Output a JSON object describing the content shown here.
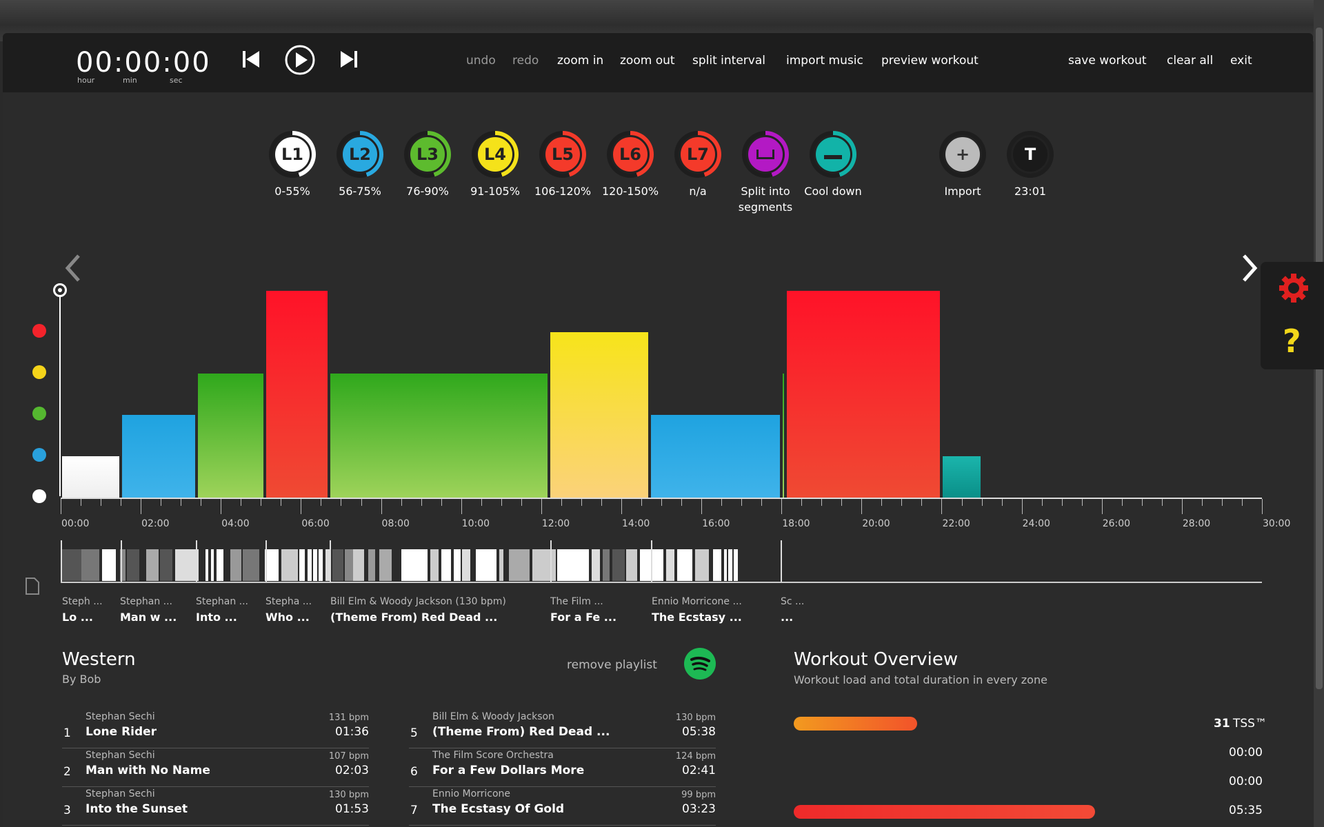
{
  "clock": {
    "time": "00:00:00",
    "unit_hour": "hour",
    "unit_min": "min",
    "unit_sec": "sec"
  },
  "menu": {
    "undo": "undo",
    "redo": "redo",
    "zoom_in": "zoom in",
    "zoom_out": "zoom out",
    "split_interval": "split interval",
    "import_music": "import music",
    "preview_workout": "preview workout",
    "save_workout": "save workout",
    "clear_all": "clear all",
    "exit": "exit"
  },
  "zones": [
    {
      "code": "L1",
      "label": "0-55%",
      "color": "#ffffff"
    },
    {
      "code": "L2",
      "label": "56-75%",
      "color": "#29a9e0"
    },
    {
      "code": "L3",
      "label": "76-90%",
      "color": "#5dbb2e"
    },
    {
      "code": "L4",
      "label": "91-105%",
      "color": "#f5e21a"
    },
    {
      "code": "L5",
      "label": "106-120%",
      "color": "#f43a2a"
    },
    {
      "code": "L6",
      "label": "120-150%",
      "color": "#f43a2a"
    },
    {
      "code": "L7",
      "label": "n/a",
      "color": "#f43a2a"
    },
    {
      "code": "",
      "label": "Split into segments",
      "color": "#b319c4"
    },
    {
      "code": "",
      "label": "Cool down",
      "color": "#12b3a8"
    }
  ],
  "tools": {
    "import_label": "Import",
    "import_symbol": "+",
    "t_symbol": "T",
    "t_value": "23:01"
  },
  "y_colors": [
    "#f4232b",
    "#f5d41a",
    "#55b830",
    "#29a0dc",
    "#ffffff"
  ],
  "chart_data": {
    "type": "bar",
    "x_unit": "minutes",
    "x_ticks": [
      "00:00",
      "02:00",
      "04:00",
      "06:00",
      "08:00",
      "10:00",
      "12:00",
      "14:00",
      "16:00",
      "18:00",
      "20:00",
      "22:00",
      "24:00",
      "26:00",
      "28:00",
      "30:00"
    ],
    "xlim": [
      0,
      30
    ],
    "intervals": [
      {
        "start": 0,
        "end": 1.5,
        "zone": "L1"
      },
      {
        "start": 1.5,
        "end": 3.4,
        "zone": "L2"
      },
      {
        "start": 3.4,
        "end": 5.1,
        "zone": "L3"
      },
      {
        "start": 5.1,
        "end": 6.7,
        "zone": "L5"
      },
      {
        "start": 6.7,
        "end": 12.2,
        "zone": "L3"
      },
      {
        "start": 12.2,
        "end": 14.7,
        "zone": "L4"
      },
      {
        "start": 14.7,
        "end": 18.0,
        "zone": "L2"
      },
      {
        "start": 18.0,
        "end": 18.1,
        "zone": "L3"
      },
      {
        "start": 18.1,
        "end": 22.0,
        "zone": "L5"
      },
      {
        "start": 22.0,
        "end": 23.0,
        "zone": "Cool down"
      }
    ]
  },
  "songs_strip": [
    {
      "artist": "Steph ...",
      "title": "Lo ..."
    },
    {
      "artist": "Stephan ...",
      "title": "Man w ..."
    },
    {
      "artist": "Stephan ...",
      "title": "Into ..."
    },
    {
      "artist": "Stepha ...",
      "title": "Who ..."
    },
    {
      "artist": "Bill Elm & Woody Jackson   (130 bpm)",
      "title": "(Theme From) Red Dead ..."
    },
    {
      "artist": "The Film ...",
      "title": "For a Fe ..."
    },
    {
      "artist": "Ennio Morricone ...",
      "title": "The Ecstasy ..."
    },
    {
      "artist": "Sc ...",
      "title": "..."
    }
  ],
  "playlist": {
    "title": "Western",
    "author": "By Bob",
    "remove_label": "remove playlist",
    "tracks": [
      {
        "num": "1",
        "artist": "Stephan Sechi",
        "title": "Lone Rider",
        "bpm": "131 bpm",
        "duration": "01:36"
      },
      {
        "num": "2",
        "artist": "Stephan Sechi",
        "title": "Man with No Name",
        "bpm": "107 bpm",
        "duration": "02:03"
      },
      {
        "num": "3",
        "artist": "Stephan Sechi",
        "title": "Into the Sunset",
        "bpm": "130 bpm",
        "duration": "01:53"
      },
      {
        "num": "5",
        "artist": "Bill Elm & Woody Jackson",
        "title": "(Theme From) Red Dead ...",
        "bpm": "130 bpm",
        "duration": "05:38"
      },
      {
        "num": "6",
        "artist": "The Film Score Orchestra",
        "title": "For a Few Dollars More",
        "bpm": "124 bpm",
        "duration": "02:41"
      },
      {
        "num": "7",
        "artist": "Ennio Morricone",
        "title": "The Ecstasy Of Gold",
        "bpm": "99 bpm",
        "duration": "03:23"
      }
    ]
  },
  "overview": {
    "title": "Workout Overview",
    "subtitle": "Workout load and total duration in every zone",
    "tss_value": "31",
    "tss_label": "TSS™",
    "rows": [
      {
        "value": "00:00",
        "fraction": 0
      },
      {
        "value": "00:00",
        "fraction": 0
      },
      {
        "value": "05:35",
        "fraction": 0.78
      }
    ],
    "tss_fraction": 0.39
  }
}
